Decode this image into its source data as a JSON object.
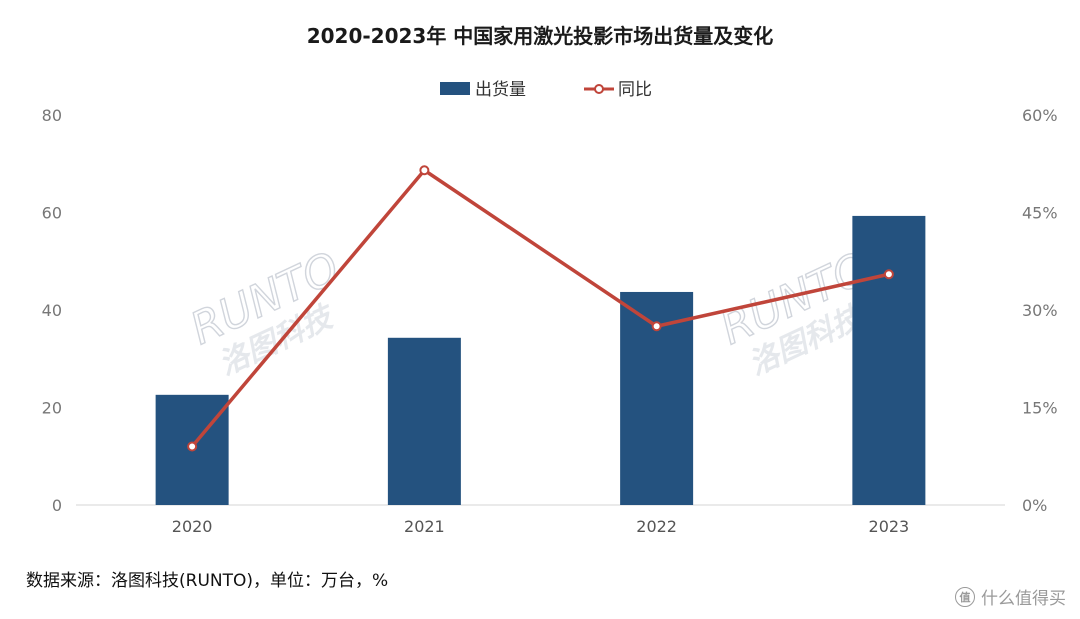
{
  "chart_data": {
    "type": "bar",
    "title": "2020-2023年 中国家用激光投影市场出货量及变化",
    "categories": [
      "2020",
      "2021",
      "2022",
      "2023"
    ],
    "series": [
      {
        "name": "出货量",
        "type": "bar",
        "axis": "left",
        "values": [
          22.6,
          34.3,
          43.7,
          59.3
        ],
        "color": "#24527f"
      },
      {
        "name": "同比",
        "type": "line",
        "axis": "right",
        "values": [
          9.0,
          51.5,
          27.5,
          35.5
        ],
        "color": "#c0453a"
      }
    ],
    "y_left": {
      "min": 0,
      "max": 80,
      "ticks": [
        "0",
        "20",
        "40",
        "60",
        "80"
      ]
    },
    "y_right": {
      "min": 0,
      "max": 60,
      "ticks": [
        "0%",
        "15%",
        "30%",
        "45%",
        "60%"
      ]
    },
    "legend_position": "top-center",
    "grid": false
  },
  "watermark": {
    "latin": "RUNTO",
    "cn": "洛图科技"
  },
  "footer": {
    "source": "数据来源：洛图科技(RUNTO)，单位：万台，%",
    "brand_text": "什么值得买",
    "brand_badge": "值"
  }
}
